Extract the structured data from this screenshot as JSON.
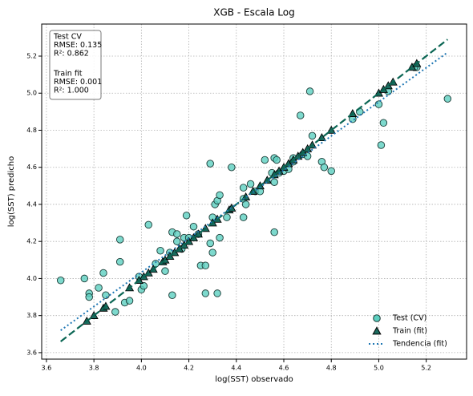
{
  "chart_data": {
    "type": "scatter",
    "title": "XGB - Escala Log",
    "xlabel": "log(SST) observado",
    "ylabel": "log(SST) predicho",
    "xlim": [
      3.58,
      5.37
    ],
    "ylim": [
      3.565,
      5.373
    ],
    "xticks": [
      3.6,
      3.8,
      {
        "value": 4,
        "label": "4.0"
      },
      4.2,
      4.4,
      4.6,
      4.8,
      {
        "value": 5,
        "label": "5.0"
      },
      5.2
    ],
    "yticks": [
      3.6,
      3.8,
      {
        "value": 4,
        "label": "4.0"
      },
      4.2,
      4.4,
      4.6,
      4.8,
      {
        "value": 5,
        "label": "5.0"
      },
      5.2
    ],
    "grid": true,
    "legend": "lower right",
    "annotations": [
      [
        "Test CV",
        "RMSE: 0.135",
        "R²: 0.862"
      ],
      [
        "Train fit",
        "RMSE: 0.001",
        "R²: 1.000"
      ]
    ],
    "reference_line": {
      "x": [
        3.66,
        5.29
      ],
      "values": [
        3.66,
        5.29
      ],
      "color": "#0b6654",
      "style": "dashed"
    },
    "series": [
      {
        "name": "Test (CV)",
        "marker": "circle",
        "color": "#5ccfc0",
        "x": [
          3.66,
          3.76,
          3.78,
          3.78,
          3.82,
          3.84,
          3.85,
          3.89,
          3.91,
          3.91,
          3.93,
          3.95,
          3.99,
          4.0,
          4.01,
          4.03,
          4.06,
          4.08,
          4.1,
          4.12,
          4.13,
          4.13,
          4.15,
          4.15,
          4.17,
          4.18,
          4.19,
          4.2,
          4.22,
          4.24,
          4.25,
          4.27,
          4.27,
          4.29,
          4.29,
          4.3,
          4.3,
          4.31,
          4.32,
          4.32,
          4.33,
          4.33,
          4.36,
          4.38,
          4.43,
          4.43,
          4.43,
          4.44,
          4.46,
          4.48,
          4.5,
          4.52,
          4.55,
          4.56,
          4.56,
          4.56,
          4.57,
          4.58,
          4.6,
          4.62,
          4.64,
          4.64,
          4.67,
          4.68,
          4.7,
          4.71,
          4.72,
          4.76,
          4.77,
          4.8,
          4.89,
          4.92,
          5.0,
          5.01,
          5.02,
          5.04,
          5.29,
          5.16,
          5.15
        ],
        "values": [
          3.99,
          4.0,
          3.92,
          3.9,
          3.95,
          4.03,
          3.91,
          3.82,
          4.21,
          4.09,
          3.87,
          3.88,
          4.01,
          3.94,
          3.96,
          4.29,
          4.08,
          4.15,
          4.04,
          4.14,
          4.25,
          3.91,
          4.24,
          4.2,
          4.16,
          4.22,
          4.34,
          4.22,
          4.28,
          4.24,
          4.07,
          4.07,
          3.92,
          4.19,
          4.62,
          4.33,
          4.14,
          4.4,
          3.92,
          4.42,
          4.45,
          4.22,
          4.33,
          4.6,
          4.43,
          4.33,
          4.49,
          4.4,
          4.51,
          4.47,
          4.47,
          4.64,
          4.57,
          4.52,
          4.65,
          4.25,
          4.64,
          4.57,
          4.58,
          4.59,
          4.63,
          4.65,
          4.88,
          4.67,
          4.66,
          5.01,
          4.77,
          4.63,
          4.6,
          4.58,
          4.86,
          4.9,
          4.94,
          4.72,
          4.84,
          5.01,
          4.97,
          5.14,
          5.14
        ]
      },
      {
        "name": "Train (fit)",
        "marker": "triangle",
        "color": "#1b6b5e",
        "x": [
          3.77,
          3.8,
          3.84,
          3.85,
          3.95,
          3.99,
          4.01,
          4.03,
          4.05,
          4.09,
          4.1,
          4.12,
          4.14,
          4.16,
          4.18,
          4.2,
          4.22,
          4.24,
          4.27,
          4.3,
          4.32,
          4.37,
          4.38,
          4.44,
          4.47,
          4.5,
          4.53,
          4.56,
          4.58,
          4.6,
          4.62,
          4.64,
          4.66,
          4.68,
          4.7,
          4.72,
          4.76,
          4.8,
          4.89,
          5.0,
          5.02,
          5.04,
          5.06,
          5.14,
          5.16
        ],
        "values": [
          3.77,
          3.8,
          3.84,
          3.85,
          3.95,
          3.99,
          4.01,
          4.03,
          4.05,
          4.09,
          4.1,
          4.12,
          4.14,
          4.16,
          4.18,
          4.2,
          4.22,
          4.24,
          4.27,
          4.3,
          4.32,
          4.37,
          4.38,
          4.44,
          4.47,
          4.5,
          4.53,
          4.56,
          4.58,
          4.6,
          4.62,
          4.64,
          4.66,
          4.68,
          4.7,
          4.72,
          4.76,
          4.8,
          4.89,
          5.0,
          5.02,
          5.04,
          5.06,
          5.14,
          5.16
        ]
      },
      {
        "name": "Tendencia (fit)",
        "marker": "line",
        "style": "dotted",
        "color": "#1f77b4",
        "x": [
          3.66,
          5.29
        ],
        "values": [
          3.72,
          5.22
        ]
      }
    ]
  }
}
